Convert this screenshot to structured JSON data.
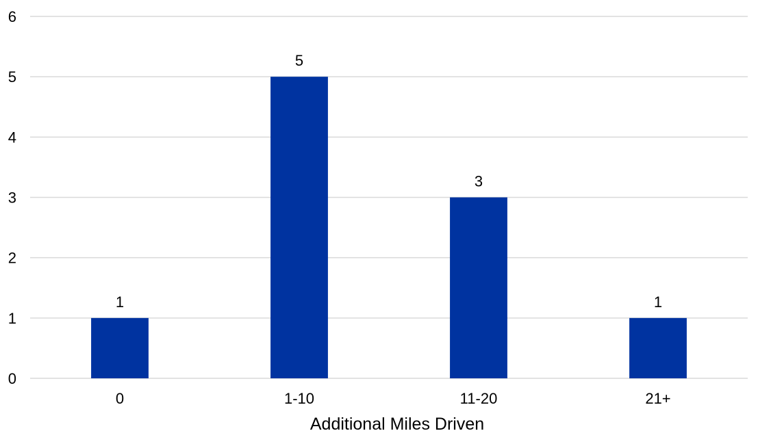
{
  "chart_data": {
    "type": "bar",
    "title": "",
    "xlabel": "Additional Miles Driven",
    "ylabel": "",
    "categories": [
      "0",
      "1-10",
      "11-20",
      "21+"
    ],
    "values": [
      1,
      5,
      3,
      1
    ],
    "data_labels": [
      "1",
      "5",
      "3",
      "1"
    ],
    "y_ticks": [
      "0",
      "1",
      "2",
      "3",
      "4",
      "5",
      "6"
    ],
    "ylim": [
      0,
      6
    ],
    "grid": true,
    "legend": "none",
    "bar_color": "#0033a0",
    "grid_color": "#d9d9d9"
  }
}
